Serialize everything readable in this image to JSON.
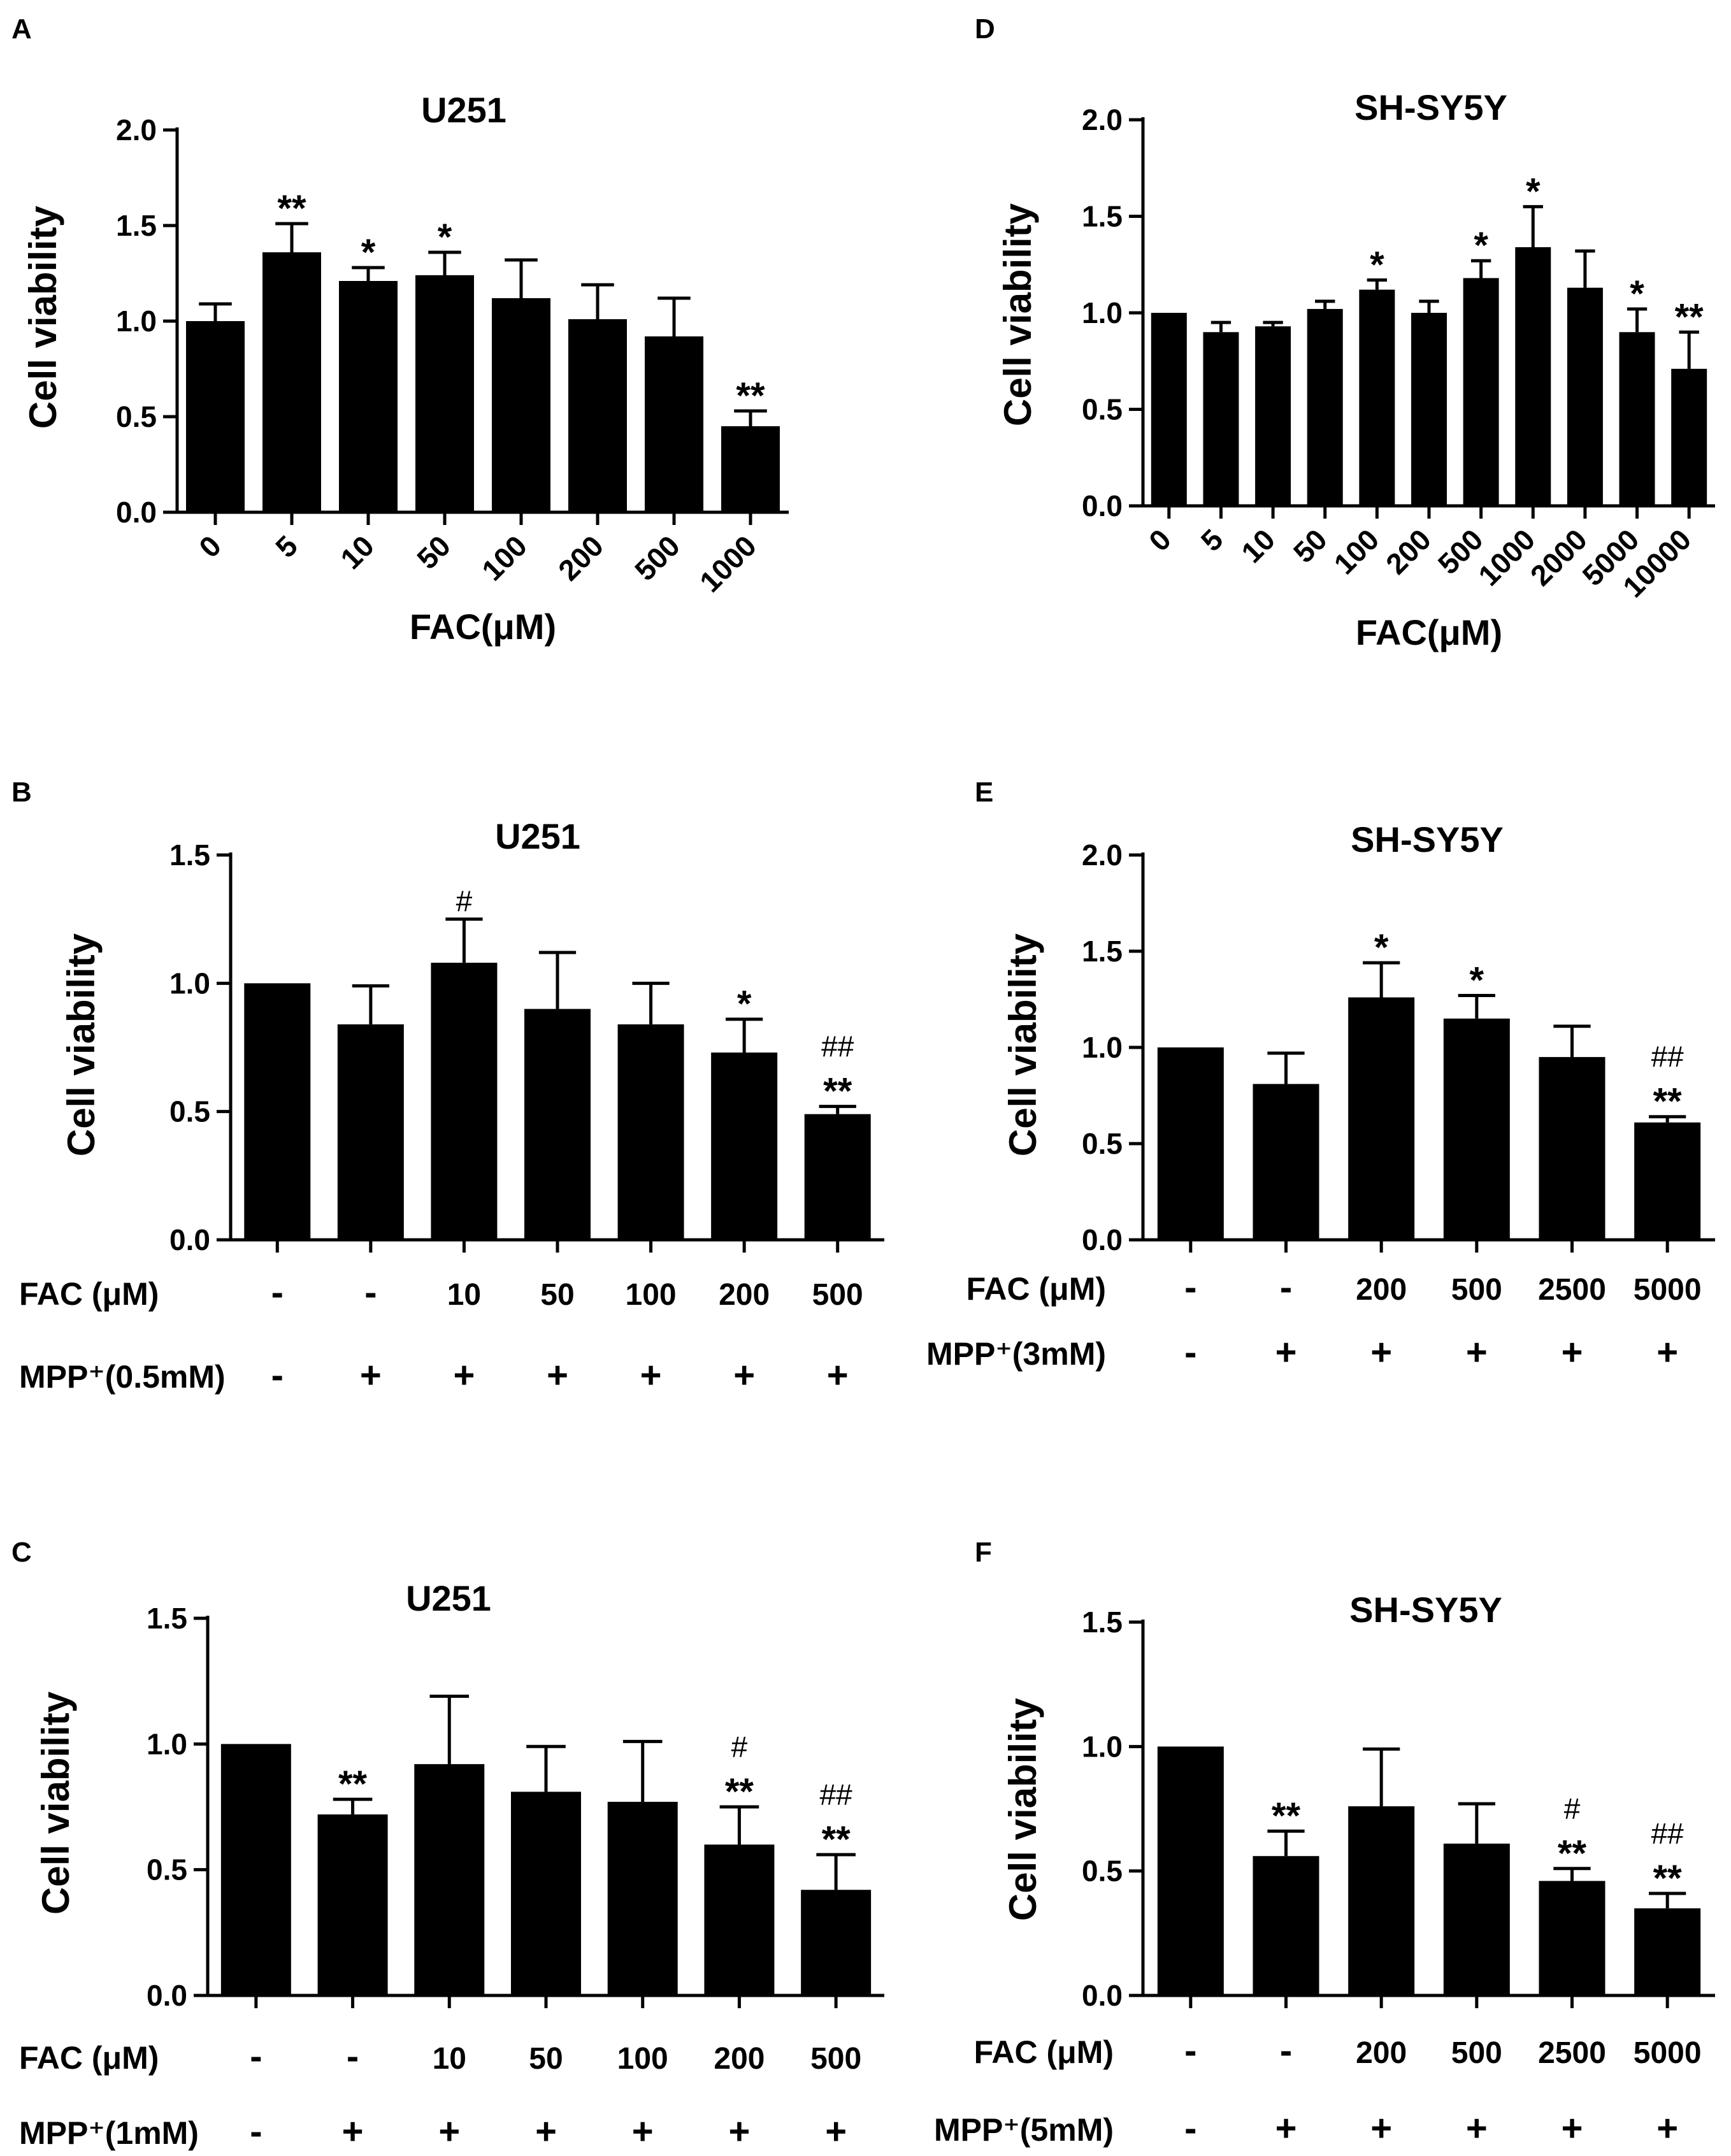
{
  "colors": {
    "bar": "#000000",
    "axis": "#000000",
    "text": "#000000",
    "background": "#ffffff"
  },
  "chart_data": [
    {
      "type": "bar",
      "panel": "A",
      "title": "U251",
      "ylabel": "Cell viability",
      "xlabel": "FAC(μM)",
      "ylim": [
        0,
        2.0
      ],
      "yticks": [
        0.0,
        0.5,
        1.0,
        1.5,
        2.0
      ],
      "ytick_labels": [
        "0.0",
        "0.5",
        "1.0",
        "1.5",
        "2.0"
      ],
      "grid": false,
      "categories": [
        "0",
        "5",
        "10",
        "50",
        "100",
        "200",
        "500",
        "1000"
      ],
      "values": [
        1.0,
        1.36,
        1.21,
        1.24,
        1.12,
        1.01,
        0.92,
        0.45
      ],
      "errors": [
        0.09,
        0.15,
        0.07,
        0.12,
        0.2,
        0.18,
        0.2,
        0.08
      ],
      "annotations": [
        [
          "",
          ""
        ],
        [
          "",
          "**"
        ],
        [
          "",
          "*"
        ],
        [
          "",
          "*"
        ],
        [
          "",
          ""
        ],
        [
          "",
          ""
        ],
        [
          "",
          ""
        ],
        [
          "",
          "**"
        ]
      ]
    },
    {
      "type": "bar",
      "panel": "B",
      "title": "U251",
      "ylabel": "Cell viability",
      "ylim": [
        0,
        1.5
      ],
      "yticks": [
        0.0,
        0.5,
        1.0,
        1.5
      ],
      "ytick_labels": [
        "0.0",
        "0.5",
        "1.0",
        "1.5"
      ],
      "grid": false,
      "treatment_rows": [
        {
          "label": "FAC (μM)",
          "values": [
            "-",
            "-",
            "10",
            "50",
            "100",
            "200",
            "500"
          ]
        },
        {
          "label": "MPP⁺(0.5mM)",
          "values": [
            "-",
            "+",
            "+",
            "+",
            "+",
            "+",
            "+"
          ]
        }
      ],
      "values": [
        1.0,
        0.84,
        1.08,
        0.9,
        0.84,
        0.73,
        0.49
      ],
      "errors": [
        0.0,
        0.15,
        0.17,
        0.22,
        0.16,
        0.13,
        0.03
      ],
      "annotations": [
        [
          "",
          ""
        ],
        [
          "",
          ""
        ],
        [
          "#",
          ""
        ],
        [
          "",
          ""
        ],
        [
          "",
          ""
        ],
        [
          "",
          "*"
        ],
        [
          "##",
          "**"
        ]
      ]
    },
    {
      "type": "bar",
      "panel": "C",
      "title": "U251",
      "ylabel": "Cell viability",
      "ylim": [
        0,
        1.5
      ],
      "yticks": [
        0.0,
        0.5,
        1.0,
        1.5
      ],
      "ytick_labels": [
        "0.0",
        "0.5",
        "1.0",
        "1.5"
      ],
      "grid": false,
      "treatment_rows": [
        {
          "label": "FAC (μM)",
          "values": [
            "-",
            "-",
            "10",
            "50",
            "100",
            "200",
            "500"
          ]
        },
        {
          "label": "MPP⁺(1mM)",
          "values": [
            "-",
            "+",
            "+",
            "+",
            "+",
            "+",
            "+"
          ]
        }
      ],
      "values": [
        1.0,
        0.72,
        0.92,
        0.81,
        0.77,
        0.6,
        0.42
      ],
      "errors": [
        0.0,
        0.06,
        0.27,
        0.18,
        0.24,
        0.15,
        0.14
      ],
      "annotations": [
        [
          "",
          ""
        ],
        [
          "",
          "**"
        ],
        [
          "",
          ""
        ],
        [
          "",
          ""
        ],
        [
          "",
          ""
        ],
        [
          "#",
          "**"
        ],
        [
          "##",
          "**"
        ]
      ]
    },
    {
      "type": "bar",
      "panel": "D",
      "title": "SH-SY5Y",
      "ylabel": "Cell viability",
      "xlabel": "FAC(μM)",
      "ylim": [
        0,
        2.0
      ],
      "yticks": [
        0.0,
        0.5,
        1.0,
        1.5,
        2.0
      ],
      "ytick_labels": [
        "0.0",
        "0.5",
        "1.0",
        "1.5",
        "2.0"
      ],
      "grid": false,
      "categories": [
        "0",
        "5",
        "10",
        "50",
        "100",
        "200",
        "500",
        "1000",
        "2000",
        "5000",
        "10000"
      ],
      "values": [
        1.0,
        0.9,
        0.93,
        1.02,
        1.12,
        1.0,
        1.18,
        1.34,
        1.13,
        0.9,
        0.71
      ],
      "errors": [
        0.0,
        0.05,
        0.02,
        0.04,
        0.05,
        0.06,
        0.09,
        0.21,
        0.19,
        0.12,
        0.19
      ],
      "annotations": [
        [
          "",
          ""
        ],
        [
          "",
          ""
        ],
        [
          "",
          ""
        ],
        [
          "",
          ""
        ],
        [
          "",
          "*"
        ],
        [
          "",
          ""
        ],
        [
          "",
          "*"
        ],
        [
          "",
          "*"
        ],
        [
          "",
          ""
        ],
        [
          "",
          "*"
        ],
        [
          "",
          "**"
        ]
      ]
    },
    {
      "type": "bar",
      "panel": "E",
      "title": "SH-SY5Y",
      "ylabel": "Cell viability",
      "ylim": [
        0,
        2.0
      ],
      "yticks": [
        0.0,
        0.5,
        1.0,
        1.5,
        2.0
      ],
      "ytick_labels": [
        "0.0",
        "0.5",
        "1.0",
        "1.5",
        "2.0"
      ],
      "grid": false,
      "treatment_rows": [
        {
          "label": "FAC (μM)",
          "values": [
            "-",
            "-",
            "200",
            "500",
            "2500",
            "5000"
          ]
        },
        {
          "label": "MPP⁺(3mM)",
          "values": [
            "-",
            "+",
            "+",
            "+",
            "+",
            "+"
          ]
        }
      ],
      "values": [
        1.0,
        0.81,
        1.26,
        1.15,
        0.95,
        0.61
      ],
      "errors": [
        0.0,
        0.16,
        0.18,
        0.12,
        0.16,
        0.03
      ],
      "annotations": [
        [
          "",
          ""
        ],
        [
          "",
          ""
        ],
        [
          "",
          "*"
        ],
        [
          "",
          "*"
        ],
        [
          "",
          ""
        ],
        [
          "##",
          "**"
        ]
      ]
    },
    {
      "type": "bar",
      "panel": "F",
      "title": "SH-SY5Y",
      "ylabel": "Cell viability",
      "ylim": [
        0,
        1.5
      ],
      "yticks": [
        0.0,
        0.5,
        1.0,
        1.5
      ],
      "ytick_labels": [
        "0.0",
        "0.5",
        "1.0",
        "1.5"
      ],
      "grid": false,
      "treatment_rows": [
        {
          "label": "FAC (μM)",
          "values": [
            "-",
            "-",
            "200",
            "500",
            "2500",
            "5000"
          ]
        },
        {
          "label": "MPP⁺(5mM)",
          "values": [
            "-",
            "+",
            "+",
            "+",
            "+",
            "+"
          ]
        }
      ],
      "values": [
        1.0,
        0.56,
        0.76,
        0.61,
        0.46,
        0.35
      ],
      "errors": [
        0.0,
        0.1,
        0.23,
        0.16,
        0.05,
        0.06
      ],
      "annotations": [
        [
          "",
          ""
        ],
        [
          "",
          "**"
        ],
        [
          "",
          ""
        ],
        [
          "",
          ""
        ],
        [
          "#",
          "**"
        ],
        [
          "##",
          "**"
        ]
      ]
    }
  ]
}
